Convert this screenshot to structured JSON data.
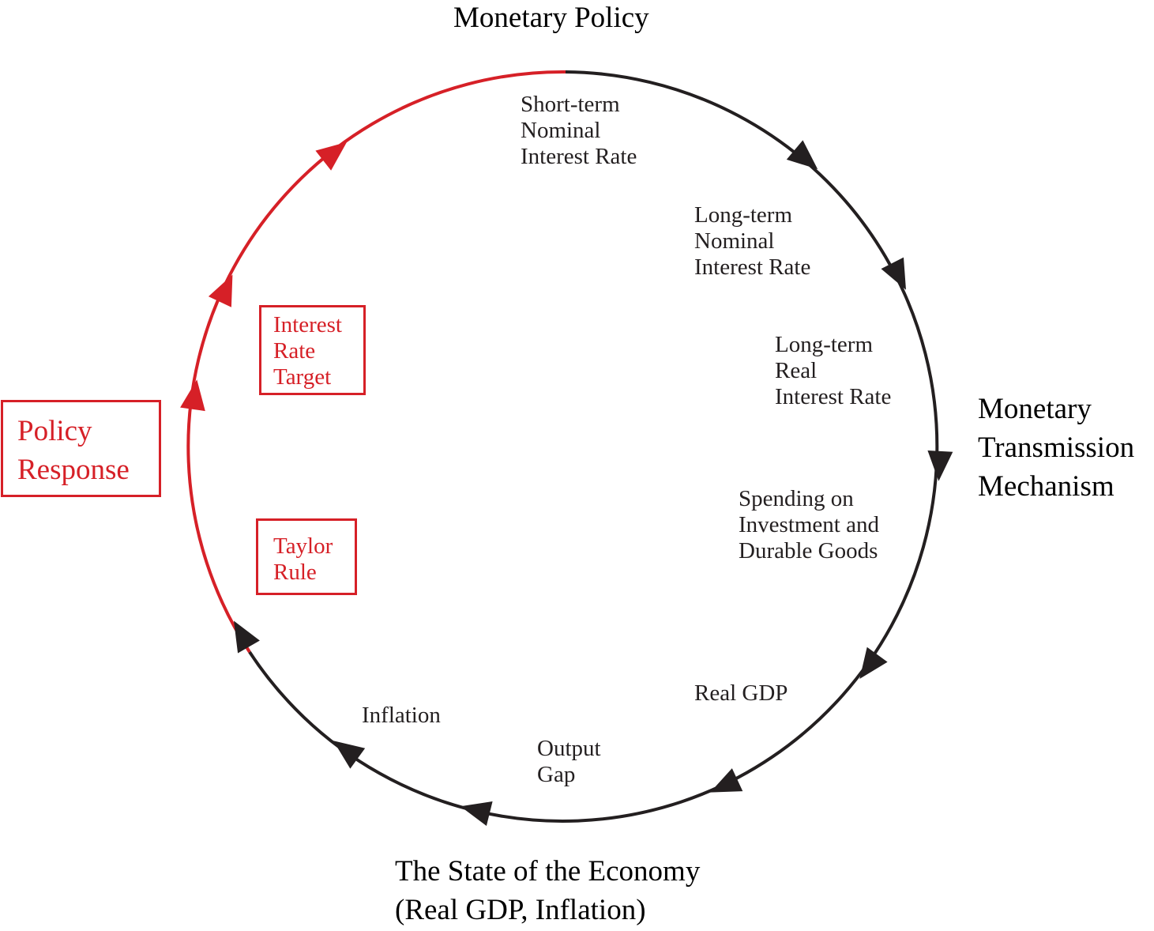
{
  "colors": {
    "ink": "#231f20",
    "policy_red": "#d62027"
  },
  "headings": {
    "monetary_policy": "Monetary Policy",
    "transmission": [
      "Monetary",
      "Transmission",
      "Mechanism"
    ],
    "state_of_economy": [
      "The State of the Economy",
      "(Real GDP, Inflation)"
    ],
    "policy_response": [
      "Policy",
      "Response"
    ]
  },
  "stages": {
    "short_term_nominal": [
      "Short-term",
      "Nominal",
      "Interest Rate"
    ],
    "long_term_nominal": [
      "Long-term",
      "Nominal",
      "Interest Rate"
    ],
    "long_term_real": [
      "Long-term",
      "Real",
      "Interest Rate"
    ],
    "spending": [
      "Spending on",
      "Investment and",
      "Durable Goods"
    ],
    "real_gdp": "Real GDP",
    "output_gap": [
      "Output",
      "Gap"
    ],
    "inflation": "Inflation"
  },
  "policy_boxes": {
    "interest_rate_target": [
      "Interest",
      "Rate",
      "Target"
    ],
    "taylor_rule": [
      "Taylor",
      "Rule"
    ]
  },
  "cycle": {
    "transmission_arrows": 5,
    "economy_arrows": 3,
    "policy_arrows": 3,
    "direction": "clockwise"
  }
}
